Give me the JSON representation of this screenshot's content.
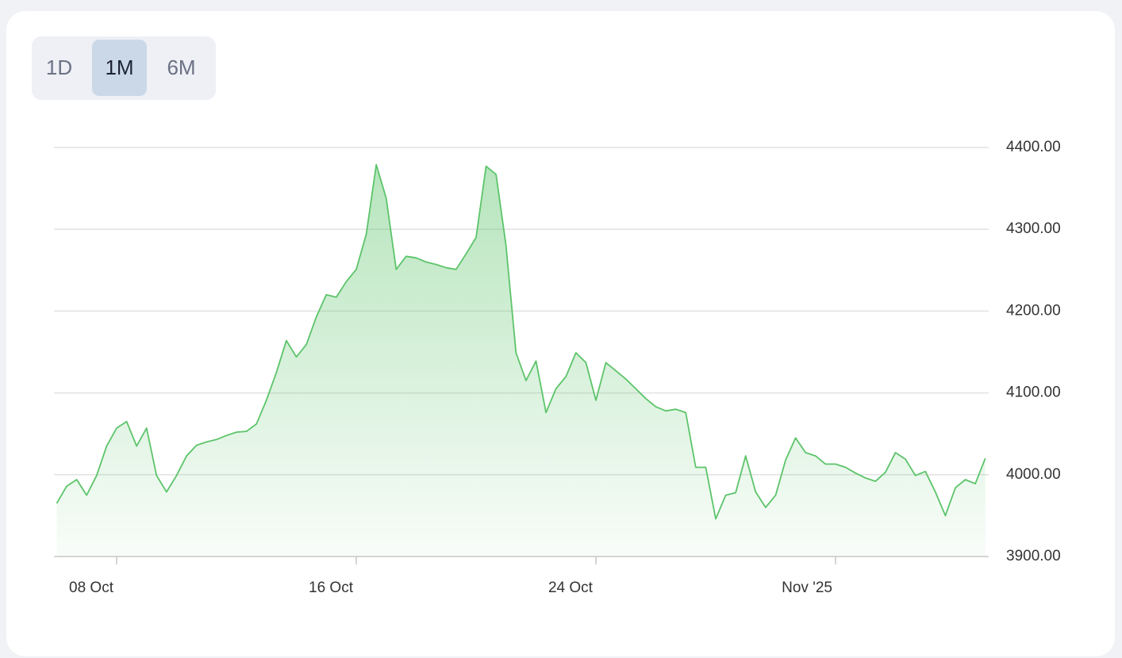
{
  "range_selector": {
    "options": [
      "1D",
      "1M",
      "6M"
    ],
    "active_index": 1
  },
  "chart_data": {
    "type": "area",
    "categories": [
      null,
      null,
      null,
      null,
      null,
      null,
      "08 Oct",
      null,
      null,
      null,
      null,
      null,
      null,
      null,
      null,
      null,
      null,
      null,
      null,
      null,
      null,
      null,
      null,
      null,
      null,
      null,
      null,
      null,
      null,
      null,
      "16 Oct",
      null,
      null,
      null,
      null,
      null,
      null,
      null,
      null,
      null,
      null,
      null,
      null,
      null,
      null,
      null,
      null,
      null,
      null,
      null,
      null,
      null,
      null,
      null,
      "24 Oct",
      null,
      null,
      null,
      null,
      null,
      null,
      null,
      null,
      null,
      null,
      null,
      null,
      null,
      null,
      null,
      null,
      null,
      null,
      null,
      null,
      null,
      null,
      null,
      "Nov '25",
      null,
      null,
      null,
      null,
      null,
      null,
      null,
      null,
      null,
      null,
      null,
      null,
      null,
      null,
      null
    ],
    "values": [
      3965,
      3986,
      3994,
      3975,
      3999,
      4035,
      4057,
      4065,
      4035,
      4057,
      3999,
      3979,
      3999,
      4023,
      4036,
      4040,
      4043,
      4048,
      4052,
      4053,
      4062,
      4091,
      4125,
      4164,
      4144,
      4159,
      4193,
      4220,
      4217,
      4236,
      4251,
      4294,
      4379,
      4338,
      4251,
      4267,
      4265,
      4260,
      4257,
      4253,
      4251,
      4270,
      4290,
      4377,
      4367,
      4280,
      4149,
      4115,
      4139,
      4076,
      4105,
      4120,
      4149,
      4137,
      4091,
      4137,
      4127,
      4117,
      4105,
      4093,
      4083,
      4078,
      4080,
      4076,
      4009,
      4009,
      3946,
      3975,
      3978,
      4023,
      3979,
      3960,
      3975,
      4018,
      4045,
      4027,
      4023,
      4013,
      4013,
      4009,
      4002,
      3996,
      3992,
      4003,
      4027,
      4019,
      3999,
      4004,
      3979,
      3950,
      3984,
      3994,
      3989,
      4020
    ],
    "color": "#5cc46a",
    "ylim": [
      3900,
      4400
    ],
    "yticks": [
      {
        "value": 3900,
        "label": "3900.00"
      },
      {
        "value": 4000,
        "label": "4000.00"
      },
      {
        "value": 4100,
        "label": "4100.00"
      },
      {
        "value": 4200,
        "label": "4200.00"
      },
      {
        "value": 4300,
        "label": "4300.00"
      },
      {
        "value": 4400,
        "label": "4400.00"
      }
    ],
    "grid": true
  }
}
